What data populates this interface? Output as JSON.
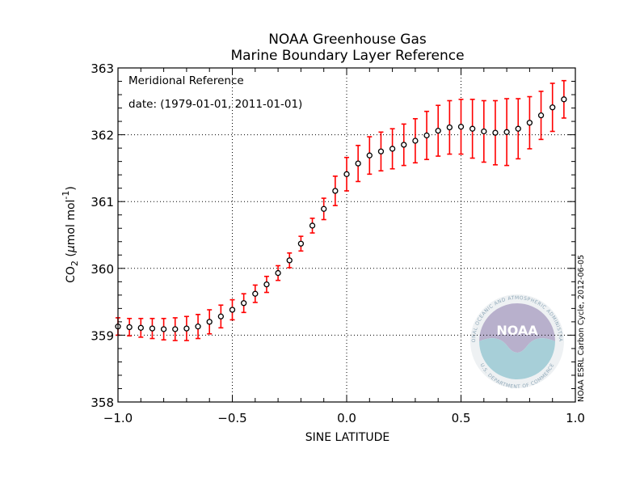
{
  "chart_data": {
    "type": "scatter",
    "title": "NOAA Greenhouse Gas",
    "subtitle": "Marine Boundary Layer Reference",
    "xlabel": "SINE LATITUDE",
    "ylabel_main": "CO",
    "ylabel_sub": "2",
    "ylabel_unit_open": " (",
    "ylabel_mu": "μ",
    "ylabel_unit_mid": "mol mol",
    "ylabel_sup": "-1",
    "ylabel_unit_close": ")",
    "xlim": [
      -1.0,
      1.0
    ],
    "ylim": [
      358,
      363
    ],
    "x_ticks": [
      -1.0,
      -0.5,
      0.0,
      0.5,
      1.0
    ],
    "x_tick_labels": [
      "−1.0",
      "−0.5",
      "0.0",
      "0.5",
      "1.0"
    ],
    "y_ticks": [
      358,
      359,
      360,
      361,
      362,
      363
    ],
    "y_tick_labels": [
      "358",
      "359",
      "360",
      "361",
      "362",
      "363"
    ],
    "grid": true,
    "annotation_line1": "Meridional Reference",
    "annotation_line2": "date: (1979-01-01, 2011-01-01)",
    "credit": "NOAA ESRL Carbon Cycle, 2012-06-05",
    "series": [
      {
        "marker_color": "#000000",
        "errorbar_color": "#ff0000",
        "x": [
          -1.0,
          -0.95,
          -0.9,
          -0.85,
          -0.8,
          -0.75,
          -0.7,
          -0.65,
          -0.6,
          -0.55,
          -0.5,
          -0.45,
          -0.4,
          -0.35,
          -0.3,
          -0.25,
          -0.2,
          -0.15,
          -0.1,
          -0.05,
          0.0,
          0.05,
          0.1,
          0.15,
          0.2,
          0.25,
          0.3,
          0.35,
          0.4,
          0.45,
          0.5,
          0.55,
          0.6,
          0.65,
          0.7,
          0.75,
          0.8,
          0.85,
          0.9,
          0.95
        ],
        "y": [
          359.13,
          359.12,
          359.11,
          359.1,
          359.09,
          359.09,
          359.1,
          359.13,
          359.2,
          359.28,
          359.38,
          359.48,
          359.62,
          359.76,
          359.93,
          360.12,
          360.37,
          360.64,
          360.89,
          361.16,
          361.41,
          361.57,
          361.69,
          361.75,
          361.79,
          361.85,
          361.91,
          361.99,
          362.06,
          362.11,
          362.12,
          362.09,
          362.05,
          362.03,
          362.04,
          362.09,
          362.18,
          362.29,
          362.41,
          362.53
        ],
        "err": [
          0.13,
          0.13,
          0.14,
          0.15,
          0.16,
          0.17,
          0.18,
          0.18,
          0.18,
          0.17,
          0.15,
          0.14,
          0.13,
          0.12,
          0.11,
          0.11,
          0.11,
          0.11,
          0.16,
          0.22,
          0.25,
          0.27,
          0.28,
          0.29,
          0.3,
          0.31,
          0.33,
          0.36,
          0.38,
          0.4,
          0.41,
          0.44,
          0.46,
          0.48,
          0.5,
          0.45,
          0.39,
          0.36,
          0.36,
          0.28
        ]
      }
    ]
  },
  "logo": {
    "name": "noaa-logo-icon",
    "word": "NOAA",
    "ring_text_top": "NATIONAL OCEANIC AND ATMOSPHERIC ADMINISTRATION",
    "ring_text_bottom": "U.S. DEPARTMENT OF COMMERCE",
    "colors": {
      "sky": "#b8b0cc",
      "sea": "#a7cfd8",
      "ring": "#e7ecef"
    }
  }
}
